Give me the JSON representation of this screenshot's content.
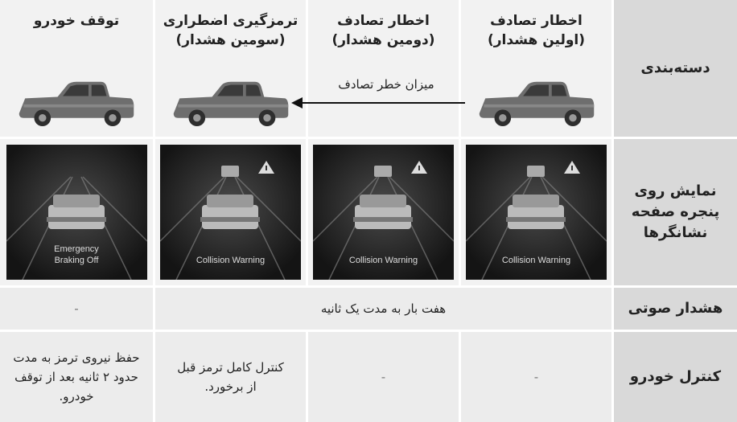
{
  "table": {
    "row_headers": [
      "دسته‌بندی",
      "نمایش روی پنجره صفحه نشانگرها",
      "هشدار صوتی",
      "کنترل خودرو"
    ],
    "columns": [
      {
        "title": "اخطار تصادف",
        "subtitle": "(اولین هشدار)"
      },
      {
        "title": "اخطار تصادف",
        "subtitle": "(دومین هشدار)"
      },
      {
        "title": "ترمزگیری اضطراری",
        "subtitle": "(سومین هشدار)"
      },
      {
        "title": "توقف خودرو"
      }
    ],
    "risk_arrow_label": "میزان خطر تصادف",
    "display_messages": [
      "Collision Warning",
      "Collision Warning",
      "Collision Warning",
      "Emergency Braking Off"
    ],
    "sound": {
      "warning": "هفت بار به مدت یک ثانیه",
      "stop": "-"
    },
    "control": [
      "-",
      "-",
      "کنترل کامل ترمز قبل از برخورد.",
      "حفظ نیروی ترمز به مدت حدود ۲ ثانیه بعد از توقف خودرو."
    ]
  }
}
